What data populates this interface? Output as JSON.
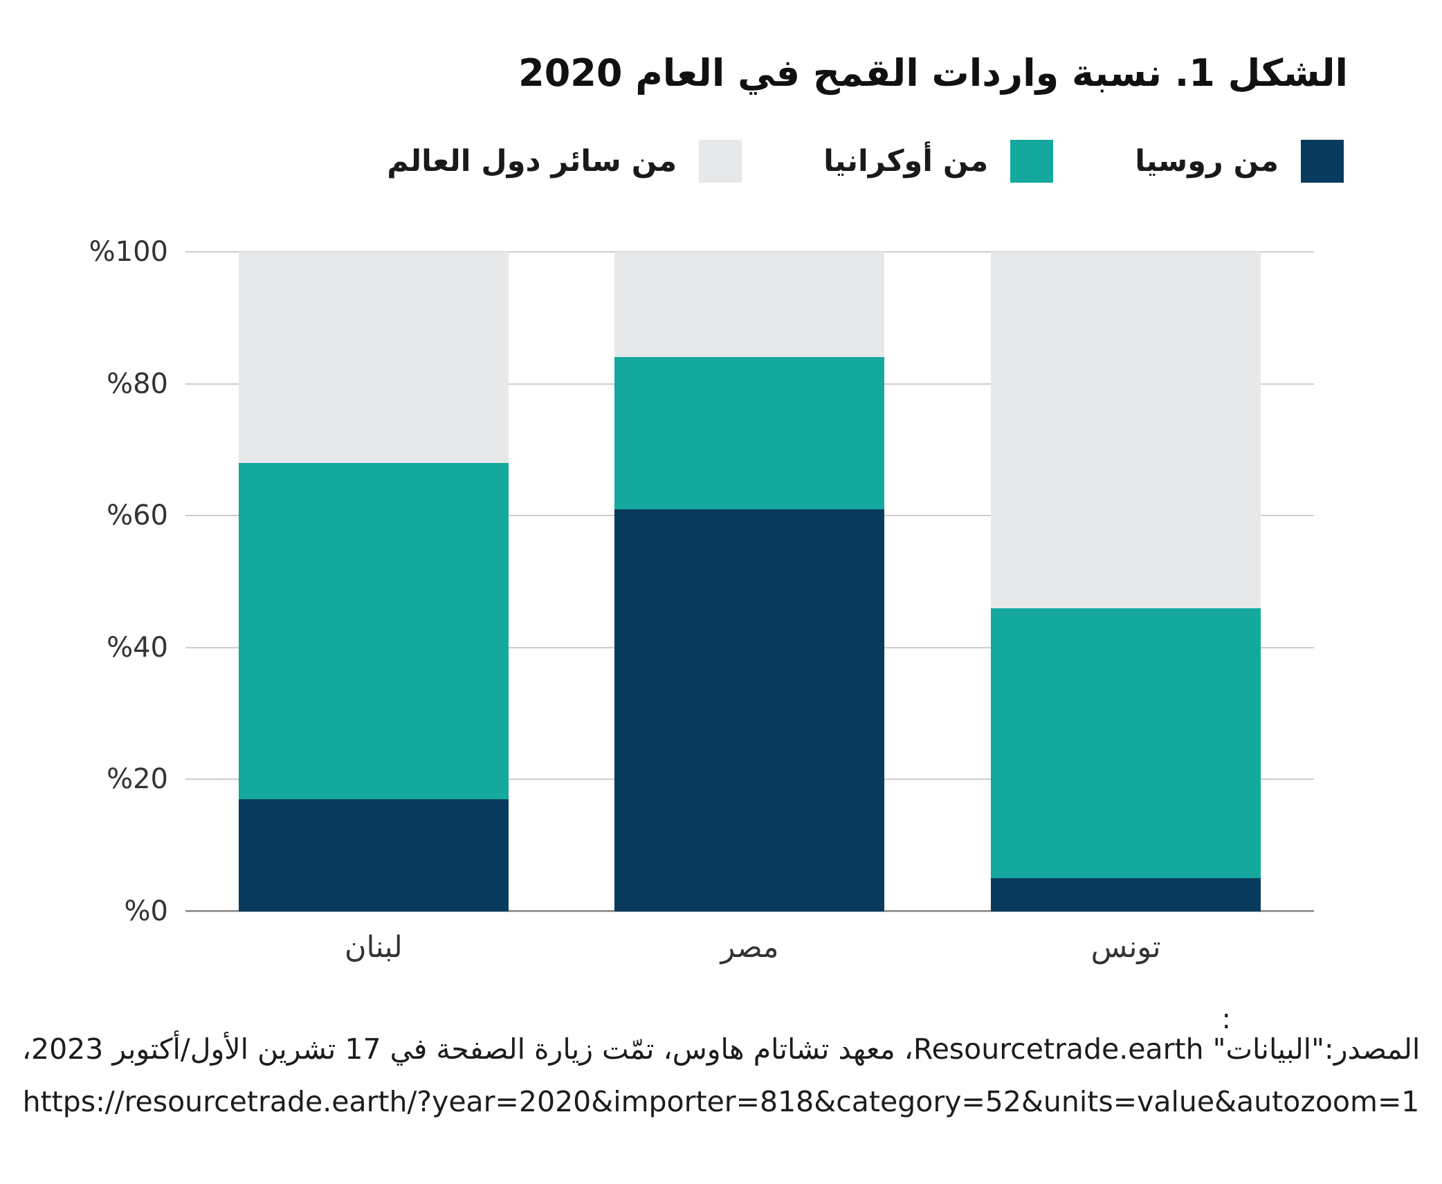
{
  "title": "الشكل 1. نسبة واردات القمح في العام 2020",
  "chart_data": {
    "type": "bar",
    "stacked": true,
    "unit": "%",
    "title": "الشكل 1. نسبة واردات القمح في العام 2020",
    "categories": [
      "لبنان",
      "مصر",
      "تونس"
    ],
    "category_keys": [
      "lebanon",
      "egypt",
      "tunisia"
    ],
    "series": [
      {
        "key": "russia",
        "name": "من روسيا",
        "color": "#083b5e",
        "values": [
          17,
          61,
          5
        ]
      },
      {
        "key": "ukraine",
        "name": "من أوكرانيا",
        "color": "#15a89e",
        "values": [
          51,
          23,
          41
        ]
      },
      {
        "key": "rest_of_world",
        "name": "من سائر دول العالم",
        "color": "#e7e8ea",
        "values": [
          32,
          16,
          54
        ]
      }
    ],
    "y_ticks": [
      "%0",
      "%20",
      "%40",
      "%60",
      "%80",
      "%100"
    ],
    "y_tick_values": [
      0,
      20,
      40,
      60,
      80,
      100
    ],
    "ylim": [
      0,
      100
    ],
    "grid": true,
    "legend_position": "top-right"
  },
  "footer": {
    "stray_colon": ":",
    "source_line": "المصدر:\"البيانات\" Resourcetrade.earth، معهد تشاتام هاوس، تمّت زيارة الصفحة في 17 تشرين الأول/أكتوبر 2023،",
    "url_line": "https://resourcetrade.earth/?year=2020&importer=818&category=52&units=value&autozoom=1"
  },
  "colors": {
    "grid_line": "#cdcdcd",
    "axis_line": "#979797",
    "text_primary": "#111111",
    "text_secondary": "#333333"
  }
}
